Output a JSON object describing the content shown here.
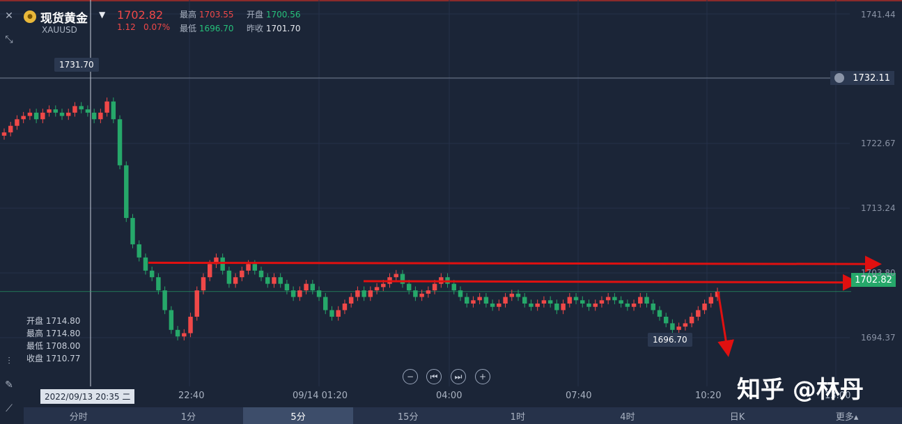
{
  "header": {
    "symbol_name": "现货黄金",
    "symbol_code": "XAUUSD",
    "price": "1702.82",
    "change": "1.12",
    "change_pct": "0.07%",
    "high_label": "最高",
    "high_value": "1703.55",
    "open_label": "开盘",
    "open_value": "1700.56",
    "low_label": "最低",
    "low_value": "1696.70",
    "prev_close_label": "昨收",
    "prev_close_value": "1701.70"
  },
  "ohlc_panel": {
    "open": "开盘 1714.80",
    "high": "最高 1714.80",
    "low": "最低 1708.00",
    "close": "收盘 1710.77"
  },
  "tags": {
    "high_tag": "1731.70",
    "low_tag": "1696.70",
    "alert_price": "1732.11",
    "current_price": "1702.82"
  },
  "y_axis": [
    "1741.44",
    "1722.67",
    "1713.24",
    "1703.80",
    "1694.37"
  ],
  "time_axis": {
    "cursor": "2022/09/13 20:35 二",
    "labels": [
      "22:40",
      "09/14 01:20",
      "04:00",
      "07:40",
      "10:20",
      "13:00"
    ]
  },
  "controls": {
    "zoom_out": "−",
    "prev": "⏮",
    "next": "⏭",
    "zoom_in": "+"
  },
  "tabs": [
    {
      "label": "分时",
      "active": false
    },
    {
      "label": "1分",
      "active": false
    },
    {
      "label": "5分",
      "active": true
    },
    {
      "label": "15分",
      "active": false
    },
    {
      "label": "1时",
      "active": false
    },
    {
      "label": "4时",
      "active": false
    },
    {
      "label": "日K",
      "active": false
    },
    {
      "label": "更多▴",
      "active": false
    }
  ],
  "watermark": "知乎 @林丹",
  "colors": {
    "up": "#f04848",
    "down": "#26a86a",
    "bg": "#1b2537",
    "annotation": "#e01010"
  },
  "chart_data": {
    "type": "candlestick",
    "ylim": [
      1690,
      1745
    ],
    "price_levels": [
      1731.7,
      1732.11,
      1702.82,
      1696.7
    ],
    "series": [
      {
        "values": [
          1727,
          1728,
          1729,
          1729.5,
          1730,
          1729,
          1730,
          1730.5,
          1730,
          1729.5,
          1730,
          1731,
          1730.5,
          1730,
          1729,
          1730,
          1731.7,
          1729,
          1722,
          1714,
          1710,
          1708,
          1706,
          1705,
          1703,
          1700,
          1697,
          1696,
          1696.5,
          1699,
          1703,
          1705,
          1707,
          1708,
          1706,
          1704,
          1705,
          1706,
          1707,
          1706,
          1705,
          1704,
          1705,
          1704,
          1703,
          1702,
          1703,
          1704,
          1703,
          1702,
          1700,
          1699,
          1700,
          1701,
          1702,
          1703,
          1702,
          1703,
          1703.5,
          1704,
          1705,
          1705.5,
          1704,
          1703,
          1702,
          1702.5,
          1703,
          1704,
          1705,
          1704,
          1703,
          1702,
          1701,
          1701.5,
          1702,
          1701,
          1700.5,
          1701,
          1702,
          1702.5,
          1702,
          1701,
          1700.5,
          1701,
          1701.5,
          1701,
          1700,
          1701,
          1702,
          1701.5,
          1701,
          1700.5,
          1701,
          1701.5,
          1702,
          1701.5,
          1701,
          1700.5,
          1701,
          1702,
          1701,
          1700,
          1699,
          1698,
          1697,
          1697.5,
          1698,
          1699,
          1700,
          1701,
          1702,
          1702.8
        ]
      }
    ]
  }
}
